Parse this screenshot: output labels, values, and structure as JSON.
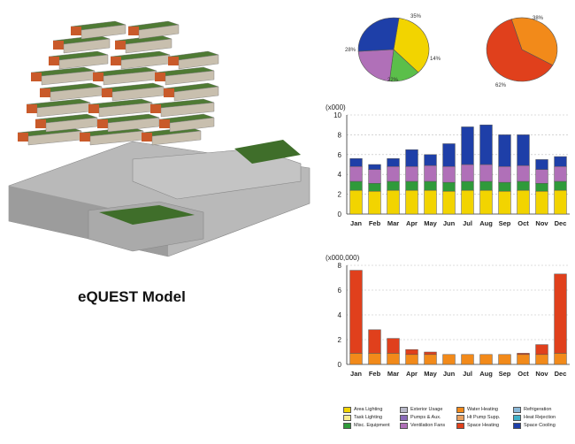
{
  "caption": "eQUEST Model",
  "pies": [
    {
      "slices": [
        {
          "label": "35%",
          "value": 35,
          "color": "#f2d400"
        },
        {
          "label": "14%",
          "value": 14,
          "color": "#5bbf4a"
        },
        {
          "label": "22%",
          "value": 22,
          "color": "#b070b8"
        },
        {
          "label": "28%",
          "value": 28,
          "color": "#1e3fa8"
        }
      ]
    },
    {
      "slices": [
        {
          "label": "38%",
          "value": 38,
          "color": "#f28a1a"
        },
        {
          "label": "62%",
          "value": 62,
          "color": "#e0401c"
        }
      ]
    }
  ],
  "months": [
    "Jan",
    "Feb",
    "Mar",
    "Apr",
    "May",
    "Jun",
    "Jul",
    "Aug",
    "Sep",
    "Oct",
    "Nov",
    "Dec"
  ],
  "chart_data": [
    {
      "type": "bar",
      "title": "(x000)",
      "categories": [
        "Jan",
        "Feb",
        "Mar",
        "Apr",
        "May",
        "Jun",
        "Jul",
        "Aug",
        "Sep",
        "Oct",
        "Nov",
        "Dec"
      ],
      "ylim": [
        0,
        10
      ],
      "yticks": [
        "0",
        "2",
        "4",
        "6",
        "8",
        "10"
      ],
      "series": [
        {
          "name": "Area Lighting",
          "color": "#f2d400",
          "values": [
            2.4,
            2.3,
            2.4,
            2.4,
            2.4,
            2.3,
            2.4,
            2.4,
            2.3,
            2.4,
            2.3,
            2.4
          ]
        },
        {
          "name": "Misc. Equipment",
          "color": "#2f9a3a",
          "values": [
            0.9,
            0.8,
            0.9,
            0.9,
            0.9,
            0.9,
            0.9,
            0.9,
            0.9,
            0.9,
            0.8,
            0.9
          ]
        },
        {
          "name": "Ventilation Fans",
          "color": "#b070b8",
          "values": [
            1.5,
            1.4,
            1.5,
            1.5,
            1.6,
            1.6,
            1.7,
            1.7,
            1.6,
            1.6,
            1.4,
            1.5
          ]
        },
        {
          "name": "Space Cooling",
          "color": "#1e3fa8",
          "values": [
            0.8,
            0.5,
            0.8,
            1.7,
            1.1,
            2.3,
            3.8,
            4.0,
            3.2,
            3.1,
            1.0,
            1.0
          ]
        }
      ]
    },
    {
      "type": "bar",
      "title": "(x000,000)",
      "categories": [
        "Jan",
        "Feb",
        "Mar",
        "Apr",
        "May",
        "Jun",
        "Jul",
        "Aug",
        "Sep",
        "Oct",
        "Nov",
        "Dec"
      ],
      "ylim": [
        0,
        8
      ],
      "yticks": [
        "0",
        "2",
        "4",
        "6",
        "8"
      ],
      "series": [
        {
          "name": "Water Heating",
          "color": "#f28a1a",
          "values": [
            0.9,
            0.9,
            0.9,
            0.8,
            0.8,
            0.8,
            0.8,
            0.8,
            0.8,
            0.8,
            0.8,
            0.9
          ]
        },
        {
          "name": "Space Heating",
          "color": "#e0401c",
          "values": [
            6.7,
            1.9,
            1.2,
            0.4,
            0.2,
            0.0,
            0.0,
            0.0,
            0.0,
            0.1,
            0.8,
            6.4
          ]
        }
      ]
    }
  ],
  "legend": [
    {
      "label": "Area Lighting",
      "color": "#f2d400"
    },
    {
      "label": "Task Lighting",
      "color": "#f7ec90"
    },
    {
      "label": "Misc. Equipment",
      "color": "#2f9a3a"
    },
    {
      "label": "Exterior Usage",
      "color": "#b8b8c8"
    },
    {
      "label": "Pumps & Aux.",
      "color": "#8a6bb8"
    },
    {
      "label": "Ventilation Fans",
      "color": "#b070b8"
    },
    {
      "label": "Water Heating",
      "color": "#f28a1a"
    },
    {
      "label": "Ht Pump Supp.",
      "color": "#e8a060"
    },
    {
      "label": "Space Heating",
      "color": "#e0401c"
    },
    {
      "label": "Refrigeration",
      "color": "#8ab8d8"
    },
    {
      "label": "Heat Rejection",
      "color": "#40b0c8"
    },
    {
      "label": "Space Cooling",
      "color": "#1e3fa8"
    }
  ]
}
